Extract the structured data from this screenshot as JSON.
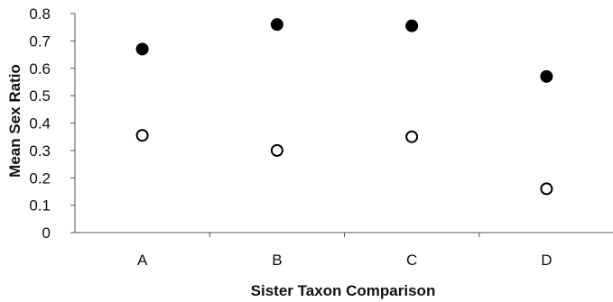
{
  "chart_data": {
    "type": "scatter",
    "title": "",
    "xlabel": "Sister Taxon Comparison",
    "ylabel": "Mean Sex Ratio",
    "categories": [
      "A",
      "B",
      "C",
      "D"
    ],
    "ylim": [
      0,
      0.8
    ],
    "yticks": [
      "0",
      "0.1",
      "0.2",
      "0.3",
      "0.4",
      "0.5",
      "0.6",
      "0.7",
      "0.8"
    ],
    "grid": false,
    "legend": "none",
    "series": [
      {
        "marker": "filled-circle",
        "color": "#000000",
        "values": [
          0.67,
          0.76,
          0.755,
          0.57
        ]
      },
      {
        "marker": "open-circle",
        "color": "#000000",
        "values": [
          0.355,
          0.3,
          0.35,
          0.16
        ]
      }
    ]
  }
}
